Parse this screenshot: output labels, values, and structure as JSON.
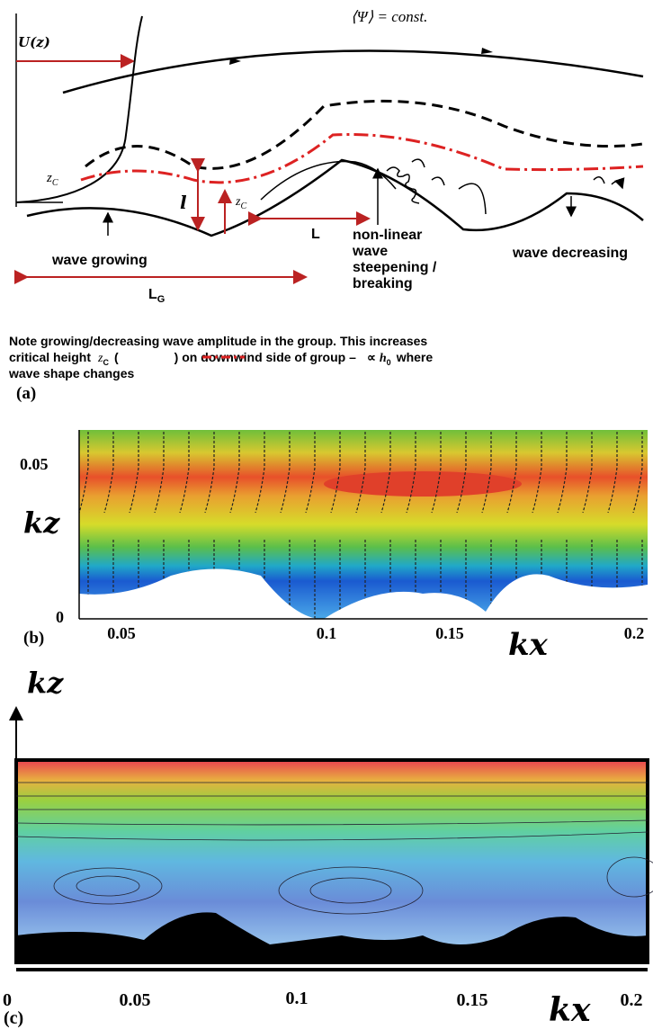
{
  "panel_a": {
    "label": "(a)",
    "u_label": "U(z)",
    "psi_label": "⟨Ψ⟩ = const.",
    "zc_left": {
      "base": "z",
      "sub": "C"
    },
    "zc_right": {
      "base": "z",
      "sub": "C"
    },
    "l_label": "l",
    "L_label": "L",
    "LG_label": {
      "base": "L",
      "sub": "G"
    },
    "wave_growing": "wave growing",
    "breaking": [
      "non-linear",
      "wave",
      "steepening /",
      "breaking"
    ],
    "wave_decreasing": "wave decreasing",
    "note": {
      "line1": "Note growing/decreasing wave amplitude in the group. This increases",
      "line2_start": "critical height",
      "zc": {
        "base": "z",
        "sub": "C"
      },
      "paren_open": "(",
      "line2_mid": ") on downwind side of group –",
      "prop": "∝",
      "h0": {
        "base": "h",
        "sub": "0"
      },
      "line2_end": "where",
      "line3": "wave shape changes"
    }
  },
  "panel_b": {
    "label": "(b)",
    "y_label": "kz",
    "x_label": "kx",
    "yticks": [
      "0.05",
      "0"
    ],
    "xticks": [
      "0.05",
      "0.1",
      "0.15",
      "0.2"
    ]
  },
  "panel_c": {
    "label": "(c)",
    "y_label": "kz",
    "x_label": "kx",
    "xticks": [
      "0",
      "0.05",
      "0.1",
      "0.15",
      "0.2"
    ]
  }
}
